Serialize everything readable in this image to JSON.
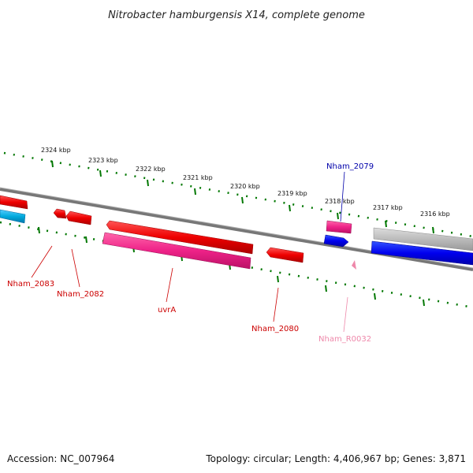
{
  "title": "Nitrobacter hamburgensis X14, complete genome",
  "footer": {
    "accession": "Accession: NC_007964",
    "summary": "Topology: circular; Length: 4,406,967 bp; Genes: 3,871"
  },
  "scale_ticks": [
    "2324 kbp",
    "2323 kbp",
    "2322 kbp",
    "2321 kbp",
    "2320 kbp",
    "2319 kbp",
    "2318 kbp",
    "2317 kbp",
    "2316 kbp"
  ],
  "gene_labels": [
    {
      "text": "Nham_2079",
      "color": "#0000aa"
    },
    {
      "text": "Nham_2083",
      "color": "#cc0000"
    },
    {
      "text": "Nham_2082",
      "color": "#cc0000"
    },
    {
      "text": "uvrA",
      "color": "#cc0000"
    },
    {
      "text": "Nham_2080",
      "color": "#cc0000"
    },
    {
      "text": "Nham_R0032",
      "color": "#ee88aa"
    }
  ],
  "colors": {
    "backbone": "#777777",
    "tick": "#007700",
    "gene_red": "#ee0000",
    "gene_pink": "#ee2288",
    "gene_blue": "#0000ee",
    "gene_cyan": "#00aadd",
    "gene_gray": "#bbbbbb"
  }
}
